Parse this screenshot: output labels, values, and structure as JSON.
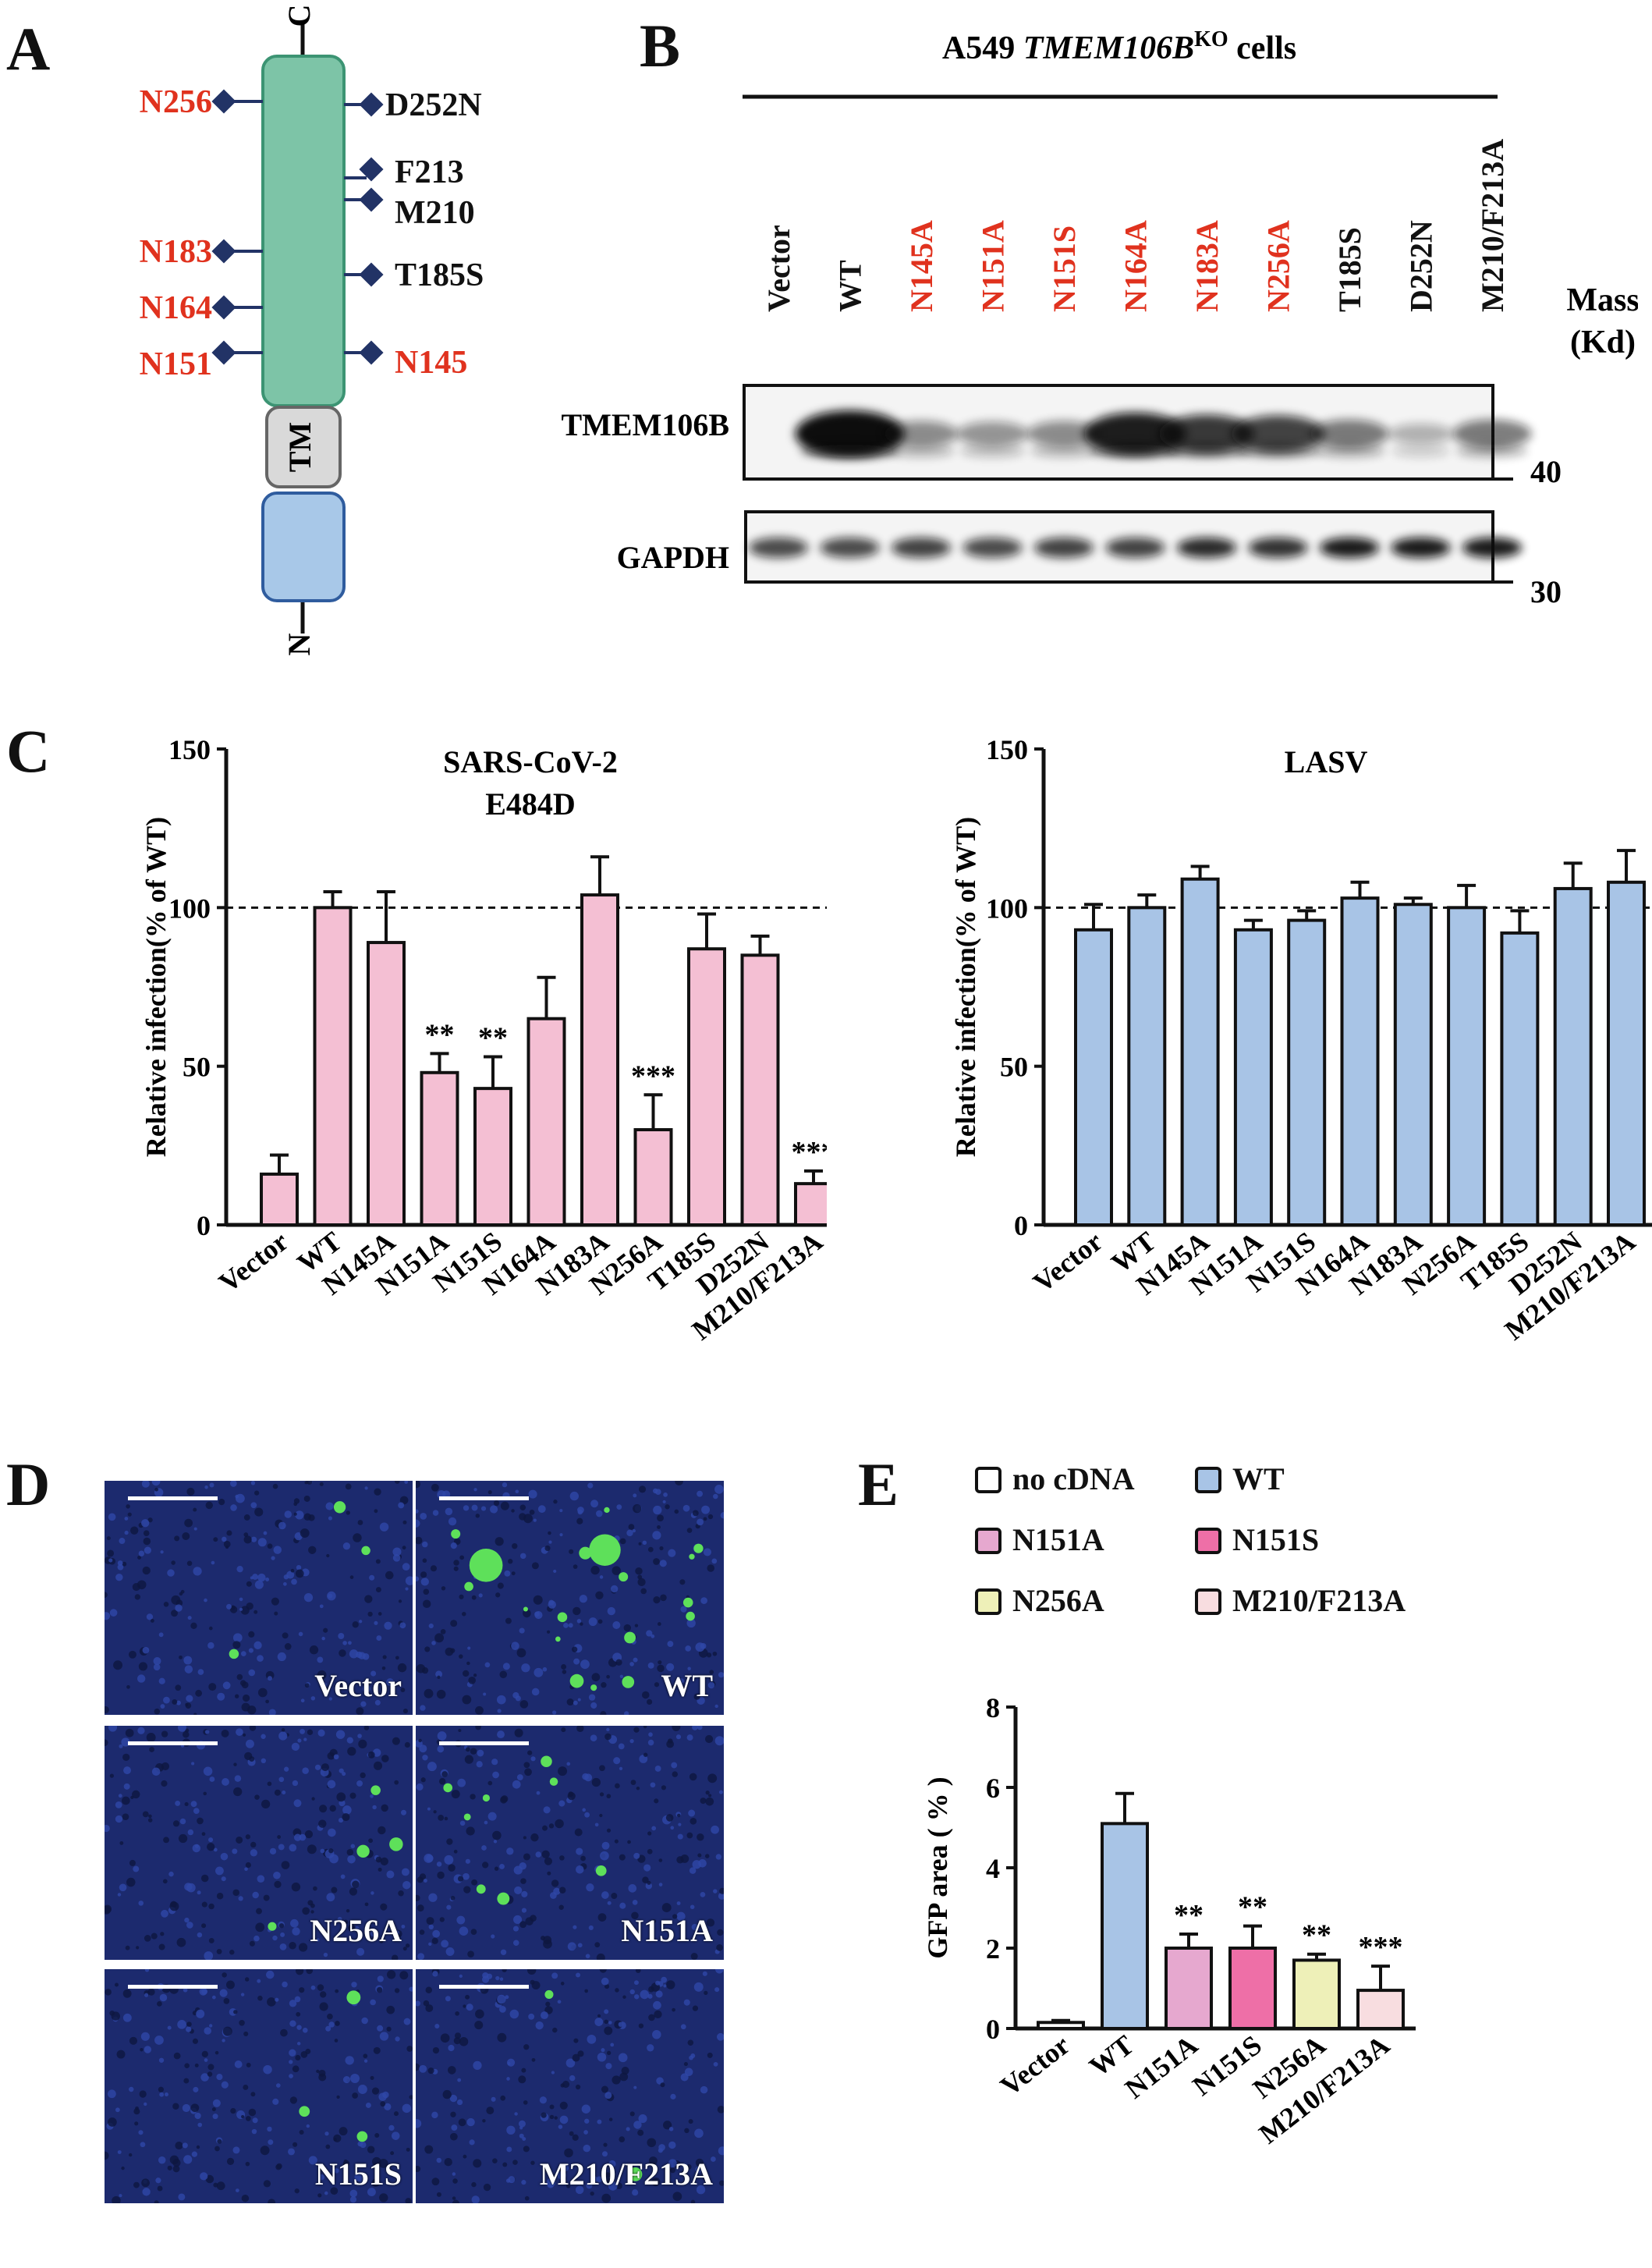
{
  "panels": {
    "A": "A",
    "B": "B",
    "C": "C",
    "D": "D",
    "E": "E"
  },
  "colors": {
    "red_label": "#e0321e",
    "diamond": "#223366",
    "ecto": "#7dc4a7",
    "tm": "#d9d9d9",
    "cyto": "#a8c8e8",
    "pink_bar": "#f4bfd3",
    "blue_bar": "#a8c4e6",
    "micro_bg": "#1c2a6e",
    "gfp": "#5ee05a"
  },
  "panel_a": {
    "c_label": "C",
    "n_label": "N",
    "tm_label": "TM",
    "left_sites": [
      {
        "label": "N256",
        "color": "red"
      },
      {
        "label": "N183",
        "color": "red"
      },
      {
        "label": "N164",
        "color": "red"
      },
      {
        "label": "N151",
        "color": "red"
      }
    ],
    "right_sites": [
      {
        "label": "D252N",
        "color": "black"
      },
      {
        "label": "F213",
        "color": "black"
      },
      {
        "label": "M210",
        "color": "black"
      },
      {
        "label": "T185S",
        "color": "black"
      },
      {
        "label": "N145",
        "color": "red"
      }
    ]
  },
  "panel_b": {
    "title_prefix": "A549 ",
    "title_gene": "TMEM106B",
    "title_sup": "KO",
    "title_suffix": " cells",
    "lanes": [
      {
        "label": "Vector",
        "color": "black",
        "tmem": 0.0,
        "gapdh": 0.55
      },
      {
        "label": "WT",
        "color": "black",
        "tmem": 1.0,
        "gapdh": 0.55
      },
      {
        "label": "N145A",
        "color": "red",
        "tmem": 0.25,
        "gapdh": 0.6
      },
      {
        "label": "N151A",
        "color": "red",
        "tmem": 0.2,
        "gapdh": 0.55
      },
      {
        "label": "N151S",
        "color": "red",
        "tmem": 0.25,
        "gapdh": 0.6
      },
      {
        "label": "N164A",
        "color": "red",
        "tmem": 0.85,
        "gapdh": 0.6
      },
      {
        "label": "N183A",
        "color": "red",
        "tmem": 0.7,
        "gapdh": 0.75
      },
      {
        "label": "N256A",
        "color": "red",
        "tmem": 0.65,
        "gapdh": 0.7
      },
      {
        "label": "T185S",
        "color": "black",
        "tmem": 0.35,
        "gapdh": 0.85
      },
      {
        "label": "D252N",
        "color": "black",
        "tmem": 0.05,
        "gapdh": 0.85
      },
      {
        "label": "M210/F213A",
        "color": "black",
        "tmem": 0.35,
        "gapdh": 0.85
      }
    ],
    "row_labels": [
      "TMEM106B",
      "GAPDH"
    ],
    "mass_title_1": "Mass",
    "mass_title_2": "(Kd)",
    "mass_markers": [
      "40",
      "30"
    ]
  },
  "panel_d": {
    "images": [
      {
        "label": "Vector",
        "gfp_cells": 3
      },
      {
        "label": "WT",
        "gfp_cells": 18
      },
      {
        "label": "N256A",
        "gfp_cells": 4
      },
      {
        "label": "N151A",
        "gfp_cells": 8
      },
      {
        "label": "N151S",
        "gfp_cells": 3
      },
      {
        "label": "M210/F213A",
        "gfp_cells": 2
      }
    ]
  },
  "legend_e": [
    {
      "label": "no cDNA",
      "color": "#ffffff"
    },
    {
      "label": "WT",
      "color": "#a8c4e6"
    },
    {
      "label": "N151A",
      "color": "#e6a8cf"
    },
    {
      "label": "N151S",
      "color": "#ee6fa7"
    },
    {
      "label": "N256A",
      "color": "#eef0b8"
    },
    {
      "label": "M210/F213A",
      "color": "#f8dde0"
    }
  ],
  "chart_data": [
    {
      "type": "bar",
      "title": "SARS-CoV-2",
      "subtitle": "E484D",
      "ylabel": "Relative infection(% of  WT)",
      "ylim": [
        0,
        150
      ],
      "yticks": [
        0,
        50,
        100,
        150
      ],
      "reference_line": 100,
      "categories": [
        "Vector",
        "WT",
        "N145A",
        "N151A",
        "N151S",
        "N164A",
        "N183A",
        "N256A",
        "T185S",
        "D252N",
        "M210/F213A"
      ],
      "values": [
        16,
        100,
        89,
        48,
        43,
        65,
        104,
        30,
        87,
        85,
        13
      ],
      "errors": [
        6,
        5,
        16,
        6,
        10,
        13,
        12,
        11,
        11,
        6,
        4
      ],
      "significance": [
        "",
        "",
        "",
        "**",
        "**",
        "",
        "",
        "***",
        "",
        "",
        "***"
      ],
      "color": "#f4bfd3"
    },
    {
      "type": "bar",
      "title": "LASV",
      "ylabel": "Relative infection(% of  WT)",
      "ylim": [
        0,
        150
      ],
      "yticks": [
        0,
        50,
        100,
        150
      ],
      "reference_line": 100,
      "categories": [
        "Vector",
        "WT",
        "N145A",
        "N151A",
        "N151S",
        "N164A",
        "N183A",
        "N256A",
        "T185S",
        "D252N",
        "M210/F213A"
      ],
      "values": [
        93,
        100,
        109,
        93,
        96,
        103,
        101,
        100,
        92,
        106,
        108
      ],
      "errors": [
        8,
        4,
        4,
        3,
        3,
        5,
        2,
        7,
        7,
        8,
        10
      ],
      "significance": [
        "",
        "",
        "",
        "",
        "",
        "",
        "",
        "",
        "",
        "",
        ""
      ],
      "color": "#a8c4e6"
    },
    {
      "type": "bar",
      "ylabel": "GFP area ( % )",
      "ylim": [
        0,
        8
      ],
      "yticks": [
        0,
        2,
        4,
        6,
        8
      ],
      "categories": [
        "Vector",
        "WT",
        "N151A",
        "N151S",
        "N256A",
        "M210/F213A"
      ],
      "values": [
        0.15,
        5.1,
        2.0,
        2.0,
        1.7,
        0.95
      ],
      "errors": [
        0.05,
        0.75,
        0.35,
        0.55,
        0.15,
        0.6
      ],
      "significance": [
        "",
        "",
        "**",
        "**",
        "**",
        "***"
      ],
      "colors": [
        "#ffffff",
        "#a8c4e6",
        "#e6a8cf",
        "#ee6fa7",
        "#eef0b8",
        "#f8dde0"
      ]
    }
  ]
}
